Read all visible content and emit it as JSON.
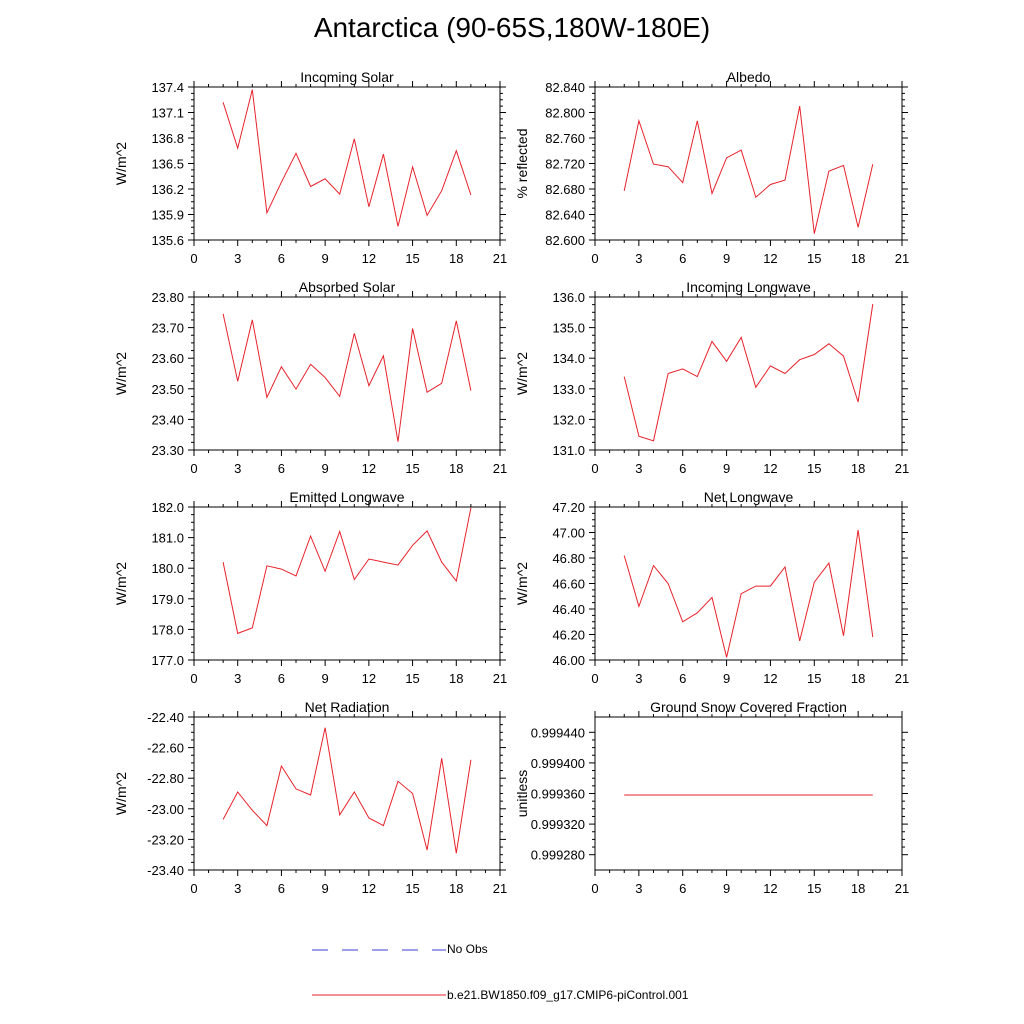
{
  "title": "Antarctica (90-65S,180W-180E)",
  "legend": [
    {
      "label": "No Obs",
      "color": "#3b3bd6",
      "style": "dashed"
    },
    {
      "label": "b.e21.BW1850.f09_g17.CMIP6-piControl.001",
      "color": "#e8222b",
      "style": "solid"
    }
  ],
  "chart_data": [
    {
      "type": "line",
      "title": "Incoming Solar",
      "ylabel": "W/m^2",
      "xlim": [
        0,
        21
      ],
      "x_ticks": [
        "0",
        "3",
        "6",
        "9",
        "12",
        "15",
        "18",
        "21"
      ],
      "ylim": [
        135.6,
        137.4
      ],
      "y_ticks": [
        "135.6",
        "135.9",
        "136.2",
        "136.5",
        "136.8",
        "137.1",
        "137.4"
      ],
      "series": [
        {
          "color": "#e8222b",
          "x": [
            2,
            3,
            4,
            5,
            6,
            7,
            8,
            9,
            10,
            11,
            12,
            13,
            14,
            15,
            16,
            17,
            18,
            19
          ],
          "y": [
            137.22,
            136.68,
            137.37,
            135.92,
            136.28,
            136.62,
            136.23,
            136.32,
            136.14,
            136.79,
            135.99,
            136.61,
            135.76,
            136.46,
            135.89,
            136.18,
            136.65,
            136.13
          ]
        }
      ]
    },
    {
      "type": "line",
      "title": "Albedo",
      "ylabel": "% reflected",
      "xlim": [
        0,
        21
      ],
      "x_ticks": [
        "0",
        "3",
        "6",
        "9",
        "12",
        "15",
        "18",
        "21"
      ],
      "ylim": [
        82.6,
        82.84
      ],
      "y_ticks": [
        "82.600",
        "82.640",
        "82.680",
        "82.720",
        "82.760",
        "82.800",
        "82.840"
      ],
      "series": [
        {
          "color": "#e8222b",
          "x": [
            2,
            3,
            4,
            5,
            6,
            7,
            8,
            9,
            10,
            11,
            12,
            13,
            14,
            15,
            16,
            17,
            18,
            19
          ],
          "y": [
            82.677,
            82.787,
            82.719,
            82.715,
            82.69,
            82.787,
            82.673,
            82.729,
            82.741,
            82.667,
            82.687,
            82.694,
            82.81,
            82.61,
            82.708,
            82.717,
            82.62,
            82.719
          ]
        }
      ]
    },
    {
      "type": "line",
      "title": "Absorbed Solar",
      "ylabel": "W/m^2",
      "xlim": [
        0,
        21
      ],
      "x_ticks": [
        "0",
        "3",
        "6",
        "9",
        "12",
        "15",
        "18",
        "21"
      ],
      "ylim": [
        23.3,
        23.8
      ],
      "y_ticks": [
        "23.30",
        "23.40",
        "23.50",
        "23.60",
        "23.70",
        "23.80"
      ],
      "series": [
        {
          "color": "#e8222b",
          "x": [
            2,
            3,
            4,
            5,
            6,
            7,
            8,
            9,
            10,
            11,
            12,
            13,
            14,
            15,
            16,
            17,
            18,
            19
          ],
          "y": [
            23.745,
            23.525,
            23.725,
            23.472,
            23.572,
            23.499,
            23.58,
            23.537,
            23.475,
            23.681,
            23.51,
            23.608,
            23.327,
            23.697,
            23.489,
            23.518,
            23.722,
            23.494
          ]
        }
      ]
    },
    {
      "type": "line",
      "title": "Incoming Longwave",
      "ylabel": "W/m^2",
      "xlim": [
        0,
        21
      ],
      "x_ticks": [
        "0",
        "3",
        "6",
        "9",
        "12",
        "15",
        "18",
        "21"
      ],
      "ylim": [
        131.0,
        136.0
      ],
      "y_ticks": [
        "131.0",
        "132.0",
        "133.0",
        "134.0",
        "135.0",
        "136.0"
      ],
      "series": [
        {
          "color": "#e8222b",
          "x": [
            2,
            3,
            4,
            5,
            6,
            7,
            8,
            9,
            10,
            11,
            12,
            13,
            14,
            15,
            16,
            17,
            18,
            19
          ],
          "y": [
            133.4,
            131.45,
            131.3,
            133.5,
            133.65,
            133.4,
            134.55,
            133.9,
            134.68,
            133.05,
            133.75,
            133.5,
            133.95,
            134.12,
            134.47,
            134.07,
            132.57,
            135.77
          ]
        }
      ]
    },
    {
      "type": "line",
      "title": "Emitted Longwave",
      "ylabel": "W/m^2",
      "xlim": [
        0,
        21
      ],
      "x_ticks": [
        "0",
        "3",
        "6",
        "9",
        "12",
        "15",
        "18",
        "21"
      ],
      "ylim": [
        177.0,
        182.0
      ],
      "y_ticks": [
        "177.0",
        "178.0",
        "179.0",
        "180.0",
        "181.0",
        "182.0"
      ],
      "series": [
        {
          "color": "#e8222b",
          "x": [
            2,
            3,
            4,
            5,
            6,
            7,
            8,
            9,
            10,
            11,
            12,
            13,
            14,
            15,
            16,
            17,
            18,
            19
          ],
          "y": [
            180.2,
            177.87,
            178.05,
            180.08,
            179.97,
            179.75,
            181.05,
            179.9,
            181.2,
            179.63,
            180.3,
            180.2,
            180.1,
            180.75,
            181.22,
            180.2,
            179.58,
            181.97
          ]
        }
      ]
    },
    {
      "type": "line",
      "title": "Net Longwave",
      "ylabel": "W/m^2",
      "xlim": [
        0,
        21
      ],
      "x_ticks": [
        "0",
        "3",
        "6",
        "9",
        "12",
        "15",
        "18",
        "21"
      ],
      "ylim": [
        46.0,
        47.2
      ],
      "y_ticks": [
        "46.00",
        "46.20",
        "46.40",
        "46.60",
        "46.80",
        "47.00",
        "47.20"
      ],
      "series": [
        {
          "color": "#e8222b",
          "x": [
            2,
            3,
            4,
            5,
            6,
            7,
            8,
            9,
            10,
            11,
            12,
            13,
            14,
            15,
            16,
            17,
            18,
            19
          ],
          "y": [
            46.82,
            46.42,
            46.74,
            46.6,
            46.3,
            46.37,
            46.49,
            46.02,
            46.52,
            46.58,
            46.58,
            46.73,
            46.15,
            46.61,
            46.76,
            46.19,
            47.02,
            46.18
          ]
        }
      ]
    },
    {
      "type": "line",
      "title": "Net Radiation",
      "ylabel": "W/m^2",
      "xlim": [
        0,
        21
      ],
      "x_ticks": [
        "0",
        "3",
        "6",
        "9",
        "12",
        "15",
        "18",
        "21"
      ],
      "ylim": [
        -23.4,
        -22.4
      ],
      "y_ticks": [
        "-23.40",
        "-23.20",
        "-23.00",
        "-22.80",
        "-22.60",
        "-22.40"
      ],
      "series": [
        {
          "color": "#e8222b",
          "x": [
            2,
            3,
            4,
            5,
            6,
            7,
            8,
            9,
            10,
            11,
            12,
            13,
            14,
            15,
            16,
            17,
            18,
            19
          ],
          "y": [
            -23.07,
            -22.89,
            -23.01,
            -23.11,
            -22.72,
            -22.87,
            -22.91,
            -22.47,
            -23.04,
            -22.89,
            -23.06,
            -23.11,
            -22.82,
            -22.9,
            -23.27,
            -22.67,
            -23.29,
            -22.68
          ]
        }
      ]
    },
    {
      "type": "line",
      "title": "Ground Snow Covered Fraction",
      "ylabel": "unitless",
      "xlim": [
        0,
        21
      ],
      "x_ticks": [
        "0",
        "3",
        "6",
        "9",
        "12",
        "15",
        "18",
        "21"
      ],
      "ylim": [
        0.99926,
        0.99946
      ],
      "y_ticks": [
        "0.999280",
        "0.999320",
        "0.999360",
        "0.999400",
        "0.999440"
      ],
      "y_tick_values": [
        0.99928,
        0.99932,
        0.99936,
        0.9994,
        0.99944
      ],
      "series": [
        {
          "color": "#e8222b",
          "x": [
            2,
            3,
            4,
            5,
            6,
            7,
            8,
            9,
            10,
            11,
            12,
            13,
            14,
            15,
            16,
            17,
            18,
            19
          ],
          "y": [
            0.999358,
            0.999358,
            0.999358,
            0.999358,
            0.999358,
            0.999358,
            0.999358,
            0.999358,
            0.999358,
            0.999358,
            0.999358,
            0.999358,
            0.999358,
            0.999358,
            0.999358,
            0.999358,
            0.999358,
            0.999358
          ]
        }
      ]
    }
  ]
}
